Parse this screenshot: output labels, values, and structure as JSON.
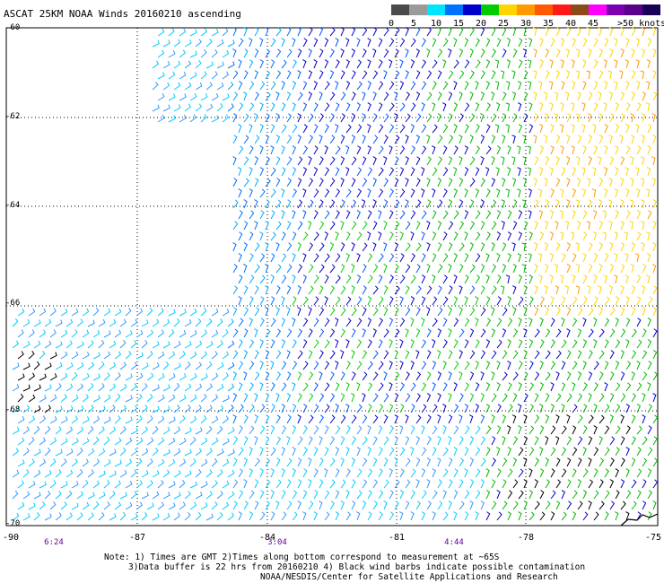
{
  "title": "ASCAT 25KM NOAA Winds 20160210 ascending",
  "colorbar": {
    "colors": [
      "#4a4a4a",
      "#9a9a9a",
      "#00e5ff",
      "#0070ff",
      "#0000cc",
      "#00cc00",
      "#ffd400",
      "#ff9a00",
      "#ff5a00",
      "#ff1a1a",
      "#8a4a1a",
      "#ff00ff",
      "#7a00b0",
      "#5a008a",
      "#1a0055"
    ],
    "labels": [
      "0",
      "5",
      "10",
      "15",
      "20",
      "25",
      "30",
      "35",
      "40",
      "45"
    ],
    "unit_label": ">50 knots"
  },
  "axes": {
    "longitude_labels": [
      "-90",
      "-87",
      "-84",
      "-81",
      "-78",
      "-75"
    ],
    "latitude_labels": [
      "-60",
      "-62",
      "-64",
      "-66",
      "-68",
      "-70"
    ]
  },
  "time_labels": [
    "6:24",
    "3:04",
    "4:44"
  ],
  "notes": {
    "line1": "Note: 1) Times are GMT 2)Times along bottom correspond to measurement at ~65S",
    "line2": "3)Data buffer is 22 hrs from 20160210 4) Black wind barbs indicate possible contamination",
    "line3": "NOAA/NESDIS/Center for Satellite Applications and Research"
  }
}
